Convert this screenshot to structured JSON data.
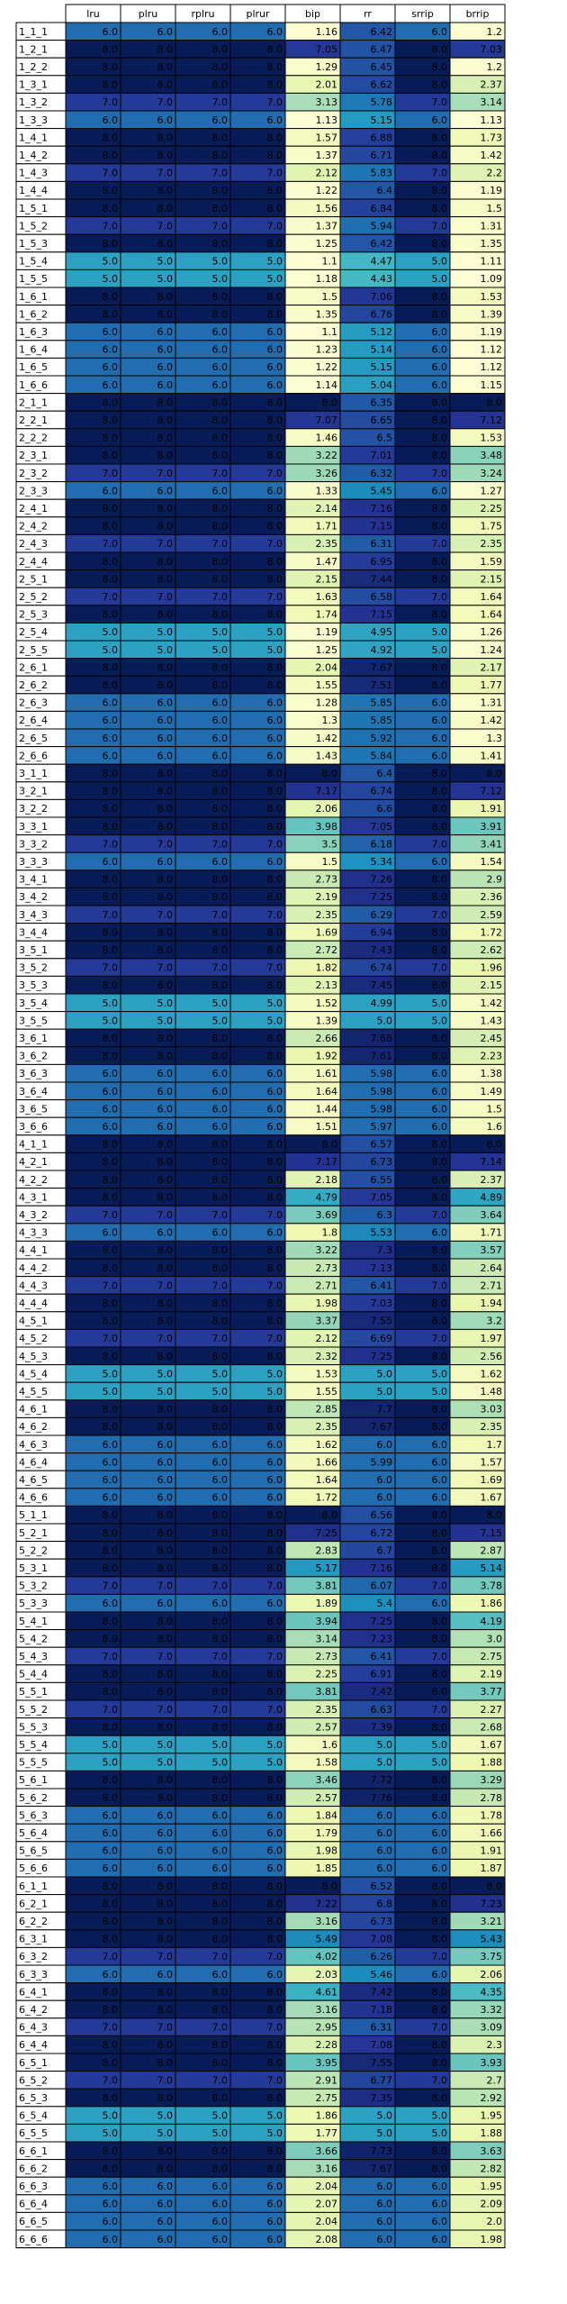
{
  "chart_data": {
    "type": "heatmap",
    "columns": [
      "lru",
      "plru",
      "rplru",
      "plrur",
      "bip",
      "rr",
      "srrip",
      "brrip"
    ],
    "rows": [
      "1_1_1",
      "1_2_1",
      "1_2_2",
      "1_3_1",
      "1_3_2",
      "1_3_3",
      "1_4_1",
      "1_4_2",
      "1_4_3",
      "1_4_4",
      "1_5_1",
      "1_5_2",
      "1_5_3",
      "1_5_4",
      "1_5_5",
      "1_6_1",
      "1_6_2",
      "1_6_3",
      "1_6_4",
      "1_6_5",
      "1_6_6",
      "2_1_1",
      "2_2_1",
      "2_2_2",
      "2_3_1",
      "2_3_2",
      "2_3_3",
      "2_4_1",
      "2_4_2",
      "2_4_3",
      "2_4_4",
      "2_5_1",
      "2_5_2",
      "2_5_3",
      "2_5_4",
      "2_5_5",
      "2_6_1",
      "2_6_2",
      "2_6_3",
      "2_6_4",
      "2_6_5",
      "2_6_6",
      "3_1_1",
      "3_2_1",
      "3_2_2",
      "3_3_1",
      "3_3_2",
      "3_3_3",
      "3_4_1",
      "3_4_2",
      "3_4_3",
      "3_4_4",
      "3_5_1",
      "3_5_2",
      "3_5_3",
      "3_5_4",
      "3_5_5",
      "3_6_1",
      "3_6_2",
      "3_6_3",
      "3_6_4",
      "3_6_5",
      "3_6_6",
      "4_1_1",
      "4_2_1",
      "4_2_2",
      "4_3_1",
      "4_3_2",
      "4_3_3",
      "4_4_1",
      "4_4_2",
      "4_4_3",
      "4_4_4",
      "4_5_1",
      "4_5_2",
      "4_5_3",
      "4_5_4",
      "4_5_5",
      "4_6_1",
      "4_6_2",
      "4_6_3",
      "4_6_4",
      "4_6_5",
      "4_6_6",
      "5_1_1",
      "5_2_1",
      "5_2_2",
      "5_3_1",
      "5_3_2",
      "5_3_3",
      "5_4_1",
      "5_4_2",
      "5_4_3",
      "5_4_4",
      "5_5_1",
      "5_5_2",
      "5_5_3",
      "5_5_4",
      "5_5_5",
      "5_6_1",
      "5_6_2",
      "5_6_3",
      "5_6_4",
      "5_6_5",
      "5_6_6",
      "6_1_1",
      "6_2_1",
      "6_2_2",
      "6_3_1",
      "6_3_2",
      "6_3_3",
      "6_4_1",
      "6_4_2",
      "6_4_3",
      "6_4_4",
      "6_5_1",
      "6_5_2",
      "6_5_3",
      "6_5_4",
      "6_5_5",
      "6_6_1",
      "6_6_2",
      "6_6_3",
      "6_6_4",
      "6_6_5",
      "6_6_6"
    ],
    "values": [
      [
        6.0,
        6.0,
        6.0,
        6.0,
        1.16,
        6.42,
        6.0,
        1.2
      ],
      [
        8.0,
        8.0,
        8.0,
        8.0,
        7.05,
        6.47,
        8.0,
        7.03
      ],
      [
        8.0,
        8.0,
        8.0,
        8.0,
        1.29,
        6.45,
        8.0,
        1.2
      ],
      [
        8.0,
        8.0,
        8.0,
        8.0,
        2.01,
        6.62,
        8.0,
        2.37
      ],
      [
        7.0,
        7.0,
        7.0,
        7.0,
        3.13,
        5.78,
        7.0,
        3.14
      ],
      [
        6.0,
        6.0,
        6.0,
        6.0,
        1.13,
        5.15,
        6.0,
        1.13
      ],
      [
        8.0,
        8.0,
        8.0,
        8.0,
        1.57,
        6.88,
        8.0,
        1.73
      ],
      [
        8.0,
        8.0,
        8.0,
        8.0,
        1.37,
        6.71,
        8.0,
        1.42
      ],
      [
        7.0,
        7.0,
        7.0,
        7.0,
        2.12,
        5.83,
        7.0,
        2.2
      ],
      [
        8.0,
        8.0,
        8.0,
        8.0,
        1.22,
        6.4,
        8.0,
        1.19
      ],
      [
        8.0,
        8.0,
        8.0,
        8.0,
        1.56,
        6.84,
        8.0,
        1.5
      ],
      [
        7.0,
        7.0,
        7.0,
        7.0,
        1.37,
        5.94,
        7.0,
        1.31
      ],
      [
        8.0,
        8.0,
        8.0,
        8.0,
        1.25,
        6.42,
        8.0,
        1.35
      ],
      [
        5.0,
        5.0,
        5.0,
        5.0,
        1.1,
        4.47,
        5.0,
        1.11
      ],
      [
        5.0,
        5.0,
        5.0,
        5.0,
        1.18,
        4.43,
        5.0,
        1.09
      ],
      [
        8.0,
        8.0,
        8.0,
        8.0,
        1.5,
        7.06,
        8.0,
        1.53
      ],
      [
        8.0,
        8.0,
        8.0,
        8.0,
        1.35,
        6.76,
        8.0,
        1.39
      ],
      [
        6.0,
        6.0,
        6.0,
        6.0,
        1.1,
        5.12,
        6.0,
        1.19
      ],
      [
        6.0,
        6.0,
        6.0,
        6.0,
        1.23,
        5.14,
        6.0,
        1.12
      ],
      [
        6.0,
        6.0,
        6.0,
        6.0,
        1.22,
        5.15,
        6.0,
        1.12
      ],
      [
        6.0,
        6.0,
        6.0,
        6.0,
        1.14,
        5.04,
        6.0,
        1.15
      ],
      [
        8.0,
        8.0,
        8.0,
        8.0,
        8.0,
        6.35,
        8.0,
        8.0
      ],
      [
        8.0,
        8.0,
        8.0,
        8.0,
        7.07,
        6.65,
        8.0,
        7.12
      ],
      [
        8.0,
        8.0,
        8.0,
        8.0,
        1.46,
        6.5,
        8.0,
        1.53
      ],
      [
        8.0,
        8.0,
        8.0,
        8.0,
        3.22,
        7.01,
        8.0,
        3.48
      ],
      [
        7.0,
        7.0,
        7.0,
        7.0,
        3.26,
        6.32,
        7.0,
        3.24
      ],
      [
        6.0,
        6.0,
        6.0,
        6.0,
        1.33,
        5.45,
        6.0,
        1.27
      ],
      [
        8.0,
        8.0,
        8.0,
        8.0,
        2.14,
        7.16,
        8.0,
        2.25
      ],
      [
        8.0,
        8.0,
        8.0,
        8.0,
        1.71,
        7.15,
        8.0,
        1.75
      ],
      [
        7.0,
        7.0,
        7.0,
        7.0,
        2.35,
        6.31,
        7.0,
        2.35
      ],
      [
        8.0,
        8.0,
        8.0,
        8.0,
        1.47,
        6.95,
        8.0,
        1.59
      ],
      [
        8.0,
        8.0,
        8.0,
        8.0,
        2.15,
        7.44,
        8.0,
        2.15
      ],
      [
        7.0,
        7.0,
        7.0,
        7.0,
        1.63,
        6.58,
        7.0,
        1.64
      ],
      [
        8.0,
        8.0,
        8.0,
        8.0,
        1.74,
        7.15,
        8.0,
        1.64
      ],
      [
        5.0,
        5.0,
        5.0,
        5.0,
        1.19,
        4.95,
        5.0,
        1.26
      ],
      [
        5.0,
        5.0,
        5.0,
        5.0,
        1.25,
        4.92,
        5.0,
        1.24
      ],
      [
        8.0,
        8.0,
        8.0,
        8.0,
        2.04,
        7.67,
        8.0,
        2.17
      ],
      [
        8.0,
        8.0,
        8.0,
        8.0,
        1.55,
        7.51,
        8.0,
        1.77
      ],
      [
        6.0,
        6.0,
        6.0,
        6.0,
        1.28,
        5.85,
        6.0,
        1.31
      ],
      [
        6.0,
        6.0,
        6.0,
        6.0,
        1.3,
        5.85,
        6.0,
        1.42
      ],
      [
        6.0,
        6.0,
        6.0,
        6.0,
        1.42,
        5.92,
        6.0,
        1.3
      ],
      [
        6.0,
        6.0,
        6.0,
        6.0,
        1.43,
        5.84,
        6.0,
        1.41
      ],
      [
        8.0,
        8.0,
        8.0,
        8.0,
        8.0,
        6.4,
        8.0,
        8.0
      ],
      [
        8.0,
        8.0,
        8.0,
        8.0,
        7.17,
        6.74,
        8.0,
        7.12
      ],
      [
        8.0,
        8.0,
        8.0,
        8.0,
        2.06,
        6.6,
        8.0,
        1.91
      ],
      [
        8.0,
        8.0,
        8.0,
        8.0,
        3.98,
        7.05,
        8.0,
        3.91
      ],
      [
        7.0,
        7.0,
        7.0,
        7.0,
        3.5,
        6.18,
        7.0,
        3.41
      ],
      [
        6.0,
        6.0,
        6.0,
        6.0,
        1.5,
        5.34,
        6.0,
        1.54
      ],
      [
        8.0,
        8.0,
        8.0,
        8.0,
        2.73,
        7.26,
        8.0,
        2.9
      ],
      [
        8.0,
        8.0,
        8.0,
        8.0,
        2.19,
        7.25,
        8.0,
        2.36
      ],
      [
        7.0,
        7.0,
        7.0,
        7.0,
        2.35,
        6.29,
        7.0,
        2.59
      ],
      [
        8.0,
        8.0,
        8.0,
        8.0,
        1.69,
        6.94,
        8.0,
        1.72
      ],
      [
        8.0,
        8.0,
        8.0,
        8.0,
        2.72,
        7.43,
        8.0,
        2.62
      ],
      [
        7.0,
        7.0,
        7.0,
        7.0,
        1.82,
        6.74,
        7.0,
        1.96
      ],
      [
        8.0,
        8.0,
        8.0,
        8.0,
        2.13,
        7.45,
        8.0,
        2.15
      ],
      [
        5.0,
        5.0,
        5.0,
        5.0,
        1.52,
        4.99,
        5.0,
        1.42
      ],
      [
        5.0,
        5.0,
        5.0,
        5.0,
        1.39,
        5.0,
        5.0,
        1.43
      ],
      [
        8.0,
        8.0,
        8.0,
        8.0,
        2.66,
        7.68,
        8.0,
        2.45
      ],
      [
        8.0,
        8.0,
        8.0,
        8.0,
        1.92,
        7.61,
        8.0,
        2.23
      ],
      [
        6.0,
        6.0,
        6.0,
        6.0,
        1.61,
        5.98,
        6.0,
        1.38
      ],
      [
        6.0,
        6.0,
        6.0,
        6.0,
        1.64,
        5.98,
        6.0,
        1.49
      ],
      [
        6.0,
        6.0,
        6.0,
        6.0,
        1.44,
        5.98,
        6.0,
        1.5
      ],
      [
        6.0,
        6.0,
        6.0,
        6.0,
        1.51,
        5.97,
        6.0,
        1.6
      ],
      [
        8.0,
        8.0,
        8.0,
        8.0,
        8.0,
        6.57,
        8.0,
        8.0
      ],
      [
        8.0,
        8.0,
        8.0,
        8.0,
        7.17,
        6.73,
        8.0,
        7.14
      ],
      [
        8.0,
        8.0,
        8.0,
        8.0,
        2.18,
        6.55,
        8.0,
        2.37
      ],
      [
        8.0,
        8.0,
        8.0,
        8.0,
        4.79,
        7.05,
        8.0,
        4.89
      ],
      [
        7.0,
        7.0,
        7.0,
        7.0,
        3.69,
        6.3,
        7.0,
        3.64
      ],
      [
        6.0,
        6.0,
        6.0,
        6.0,
        1.8,
        5.53,
        6.0,
        1.71
      ],
      [
        8.0,
        8.0,
        8.0,
        8.0,
        3.22,
        7.3,
        8.0,
        3.57
      ],
      [
        8.0,
        8.0,
        8.0,
        8.0,
        2.73,
        7.13,
        8.0,
        2.64
      ],
      [
        7.0,
        7.0,
        7.0,
        7.0,
        2.71,
        6.41,
        7.0,
        2.71
      ],
      [
        8.0,
        8.0,
        8.0,
        8.0,
        1.98,
        7.03,
        8.0,
        1.94
      ],
      [
        8.0,
        8.0,
        8.0,
        8.0,
        3.37,
        7.55,
        8.0,
        3.2
      ],
      [
        7.0,
        7.0,
        7.0,
        7.0,
        2.12,
        6.69,
        7.0,
        1.97
      ],
      [
        8.0,
        8.0,
        8.0,
        8.0,
        2.32,
        7.25,
        8.0,
        2.56
      ],
      [
        5.0,
        5.0,
        5.0,
        5.0,
        1.53,
        5.0,
        5.0,
        1.62
      ],
      [
        5.0,
        5.0,
        5.0,
        5.0,
        1.55,
        5.0,
        5.0,
        1.48
      ],
      [
        8.0,
        8.0,
        8.0,
        8.0,
        2.85,
        7.7,
        8.0,
        3.03
      ],
      [
        8.0,
        8.0,
        8.0,
        8.0,
        2.35,
        7.67,
        8.0,
        2.35
      ],
      [
        6.0,
        6.0,
        6.0,
        6.0,
        1.62,
        6.0,
        6.0,
        1.7
      ],
      [
        6.0,
        6.0,
        6.0,
        6.0,
        1.66,
        5.99,
        6.0,
        1.57
      ],
      [
        6.0,
        6.0,
        6.0,
        6.0,
        1.64,
        6.0,
        6.0,
        1.69
      ],
      [
        6.0,
        6.0,
        6.0,
        6.0,
        1.72,
        6.0,
        6.0,
        1.67
      ],
      [
        8.0,
        8.0,
        8.0,
        8.0,
        8.0,
        6.56,
        8.0,
        8.0
      ],
      [
        8.0,
        8.0,
        8.0,
        8.0,
        7.25,
        6.72,
        8.0,
        7.15
      ],
      [
        8.0,
        8.0,
        8.0,
        8.0,
        2.83,
        6.7,
        8.0,
        2.87
      ],
      [
        8.0,
        8.0,
        8.0,
        8.0,
        5.17,
        7.16,
        8.0,
        5.14
      ],
      [
        7.0,
        7.0,
        7.0,
        7.0,
        3.81,
        6.07,
        7.0,
        3.78
      ],
      [
        6.0,
        6.0,
        6.0,
        6.0,
        1.89,
        5.4,
        6.0,
        1.86
      ],
      [
        8.0,
        8.0,
        8.0,
        8.0,
        3.94,
        7.25,
        8.0,
        4.19
      ],
      [
        8.0,
        8.0,
        8.0,
        8.0,
        3.14,
        7.23,
        8.0,
        3.0
      ],
      [
        7.0,
        7.0,
        7.0,
        7.0,
        2.73,
        6.41,
        7.0,
        2.75
      ],
      [
        8.0,
        8.0,
        8.0,
        8.0,
        2.25,
        6.91,
        8.0,
        2.19
      ],
      [
        8.0,
        8.0,
        8.0,
        8.0,
        3.81,
        7.42,
        8.0,
        3.77
      ],
      [
        7.0,
        7.0,
        7.0,
        7.0,
        2.35,
        6.63,
        7.0,
        2.27
      ],
      [
        8.0,
        8.0,
        8.0,
        8.0,
        2.57,
        7.39,
        8.0,
        2.68
      ],
      [
        5.0,
        5.0,
        5.0,
        5.0,
        1.6,
        5.0,
        5.0,
        1.67
      ],
      [
        5.0,
        5.0,
        5.0,
        5.0,
        1.58,
        5.0,
        5.0,
        1.88
      ],
      [
        8.0,
        8.0,
        8.0,
        8.0,
        3.46,
        7.72,
        8.0,
        3.29
      ],
      [
        8.0,
        8.0,
        8.0,
        8.0,
        2.57,
        7.76,
        8.0,
        2.78
      ],
      [
        6.0,
        6.0,
        6.0,
        6.0,
        1.84,
        6.0,
        6.0,
        1.78
      ],
      [
        6.0,
        6.0,
        6.0,
        6.0,
        1.79,
        6.0,
        6.0,
        1.66
      ],
      [
        6.0,
        6.0,
        6.0,
        6.0,
        1.98,
        6.0,
        6.0,
        1.91
      ],
      [
        6.0,
        6.0,
        6.0,
        6.0,
        1.85,
        6.0,
        6.0,
        1.87
      ],
      [
        8.0,
        8.0,
        8.0,
        8.0,
        8.0,
        6.52,
        8.0,
        8.0
      ],
      [
        8.0,
        8.0,
        8.0,
        8.0,
        7.22,
        6.8,
        8.0,
        7.23
      ],
      [
        8.0,
        8.0,
        8.0,
        8.0,
        3.16,
        6.73,
        8.0,
        3.21
      ],
      [
        8.0,
        8.0,
        8.0,
        8.0,
        5.49,
        7.08,
        8.0,
        5.43
      ],
      [
        7.0,
        7.0,
        7.0,
        7.0,
        4.02,
        6.26,
        7.0,
        3.75
      ],
      [
        6.0,
        6.0,
        6.0,
        6.0,
        2.03,
        5.46,
        6.0,
        2.06
      ],
      [
        8.0,
        8.0,
        8.0,
        8.0,
        4.61,
        7.42,
        8.0,
        4.35
      ],
      [
        8.0,
        8.0,
        8.0,
        8.0,
        3.16,
        7.18,
        8.0,
        3.32
      ],
      [
        7.0,
        7.0,
        7.0,
        7.0,
        2.95,
        6.31,
        7.0,
        3.09
      ],
      [
        8.0,
        8.0,
        8.0,
        8.0,
        2.28,
        7.08,
        8.0,
        2.3
      ],
      [
        8.0,
        8.0,
        8.0,
        8.0,
        3.95,
        7.55,
        8.0,
        3.93
      ],
      [
        7.0,
        7.0,
        7.0,
        7.0,
        2.91,
        6.77,
        7.0,
        2.7
      ],
      [
        8.0,
        8.0,
        8.0,
        8.0,
        2.75,
        7.35,
        8.0,
        2.92
      ],
      [
        5.0,
        5.0,
        5.0,
        5.0,
        1.86,
        5.0,
        5.0,
        1.95
      ],
      [
        5.0,
        5.0,
        5.0,
        5.0,
        1.77,
        5.0,
        5.0,
        1.88
      ],
      [
        8.0,
        8.0,
        8.0,
        8.0,
        3.66,
        7.73,
        8.0,
        3.63
      ],
      [
        8.0,
        8.0,
        8.0,
        8.0,
        3.16,
        7.67,
        8.0,
        2.82
      ],
      [
        6.0,
        6.0,
        6.0,
        6.0,
        2.04,
        6.0,
        6.0,
        1.95
      ],
      [
        6.0,
        6.0,
        6.0,
        6.0,
        2.07,
        6.0,
        6.0,
        2.09
      ],
      [
        6.0,
        6.0,
        6.0,
        6.0,
        2.04,
        6.0,
        6.0,
        2.0
      ],
      [
        6.0,
        6.0,
        6.0,
        6.0,
        2.08,
        6.0,
        6.0,
        1.98
      ]
    ],
    "color_scale": {
      "name": "YlGnBu",
      "stops": [
        "#ffffd9",
        "#edf8b1",
        "#c7e9b4",
        "#7fcdbb",
        "#41b6c4",
        "#1d91c0",
        "#225ea8",
        "#253494",
        "#081d58"
      ],
      "vmin": 1.0,
      "vmax": 8.0
    },
    "grid": true
  }
}
